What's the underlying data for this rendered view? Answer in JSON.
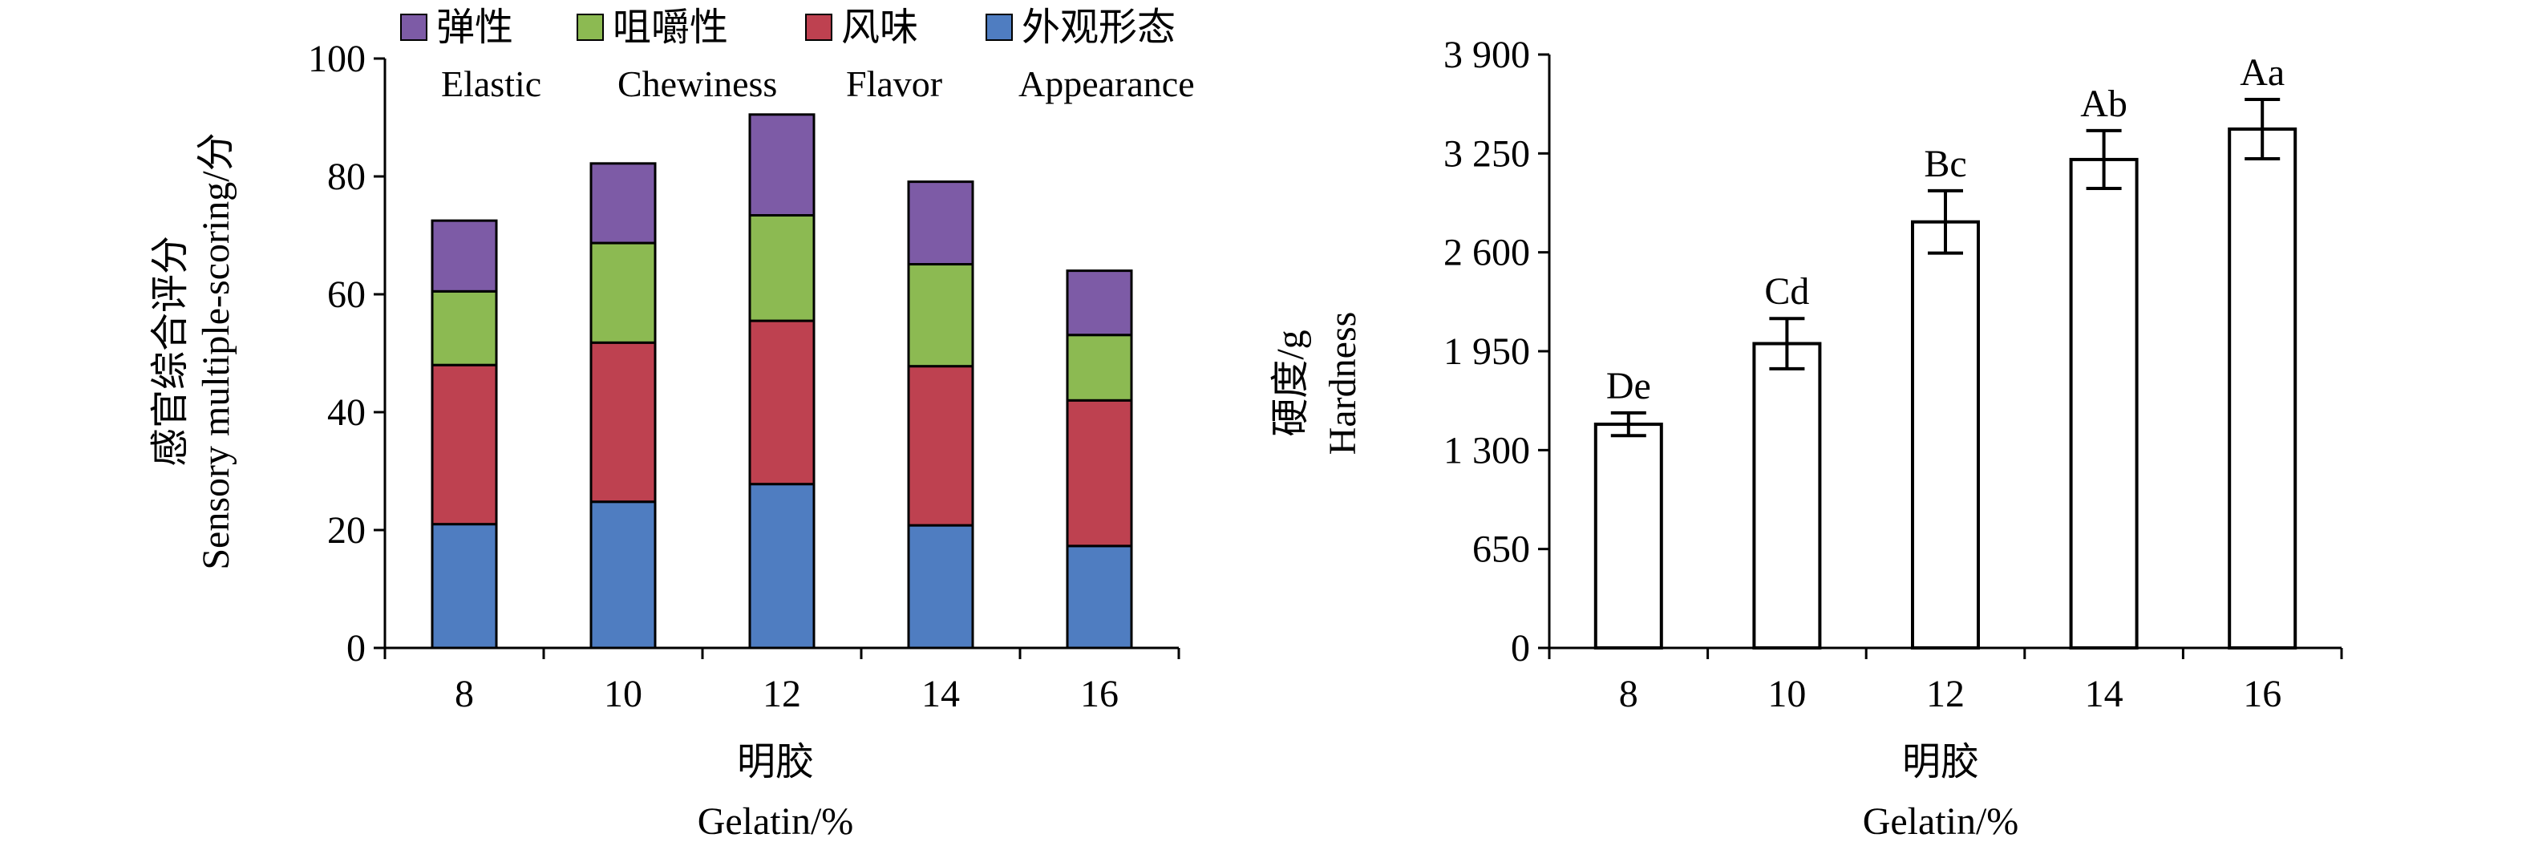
{
  "chart_data": [
    {
      "type": "bar",
      "stacked": true,
      "categories": [
        "8",
        "10",
        "12",
        "14",
        "16"
      ],
      "series": [
        {
          "name": "外观形态",
          "name_en": "Appearance",
          "color": "#4f7dc1",
          "values": [
            21,
            24.8,
            27.8,
            20.8,
            17.3
          ]
        },
        {
          "name": "风味",
          "name_en": "Flavor",
          "color": "#be4150",
          "values": [
            27,
            27,
            27.7,
            27,
            24.7
          ]
        },
        {
          "name": "咀嚼性",
          "name_en": "Chewiness",
          "color": "#8cba52",
          "values": [
            12.5,
            16.9,
            17.9,
            17.3,
            11.1
          ]
        },
        {
          "name": "弹性",
          "name_en": "Elastic",
          "color": "#7d5ba6",
          "values": [
            12,
            13.5,
            17.1,
            14,
            10.9
          ]
        }
      ],
      "xlabel": "明胶",
      "xlabel_en": "Gelatin/%",
      "ylabel": "感官综合评分",
      "ylabel_en": "Sensory multiple-scoring/分",
      "ylim": [
        0,
        100
      ],
      "yticks": [
        0,
        20,
        40,
        60,
        80,
        100
      ],
      "legend_position": "top"
    },
    {
      "type": "bar",
      "categories": [
        "8",
        "10",
        "12",
        "14",
        "16"
      ],
      "values": [
        1470,
        2000,
        2800,
        3210,
        3410
      ],
      "errors": [
        75,
        165,
        205,
        190,
        195
      ],
      "labels": [
        "De",
        "Cd",
        "Bc",
        "Ab",
        "Aa"
      ],
      "bar_color": "#ffffff",
      "xlabel": "明胶",
      "xlabel_en": "Gelatin/%",
      "ylabel": "硬度/g",
      "ylabel_en": "Hardness",
      "ylim": [
        0,
        3900
      ],
      "yticks": [
        0,
        650,
        1300,
        1950,
        2600,
        3250,
        3900
      ],
      "ytick_labels": [
        "0",
        "650",
        "1 300",
        "1 950",
        "2 600",
        "3 250",
        "3 900"
      ]
    }
  ]
}
